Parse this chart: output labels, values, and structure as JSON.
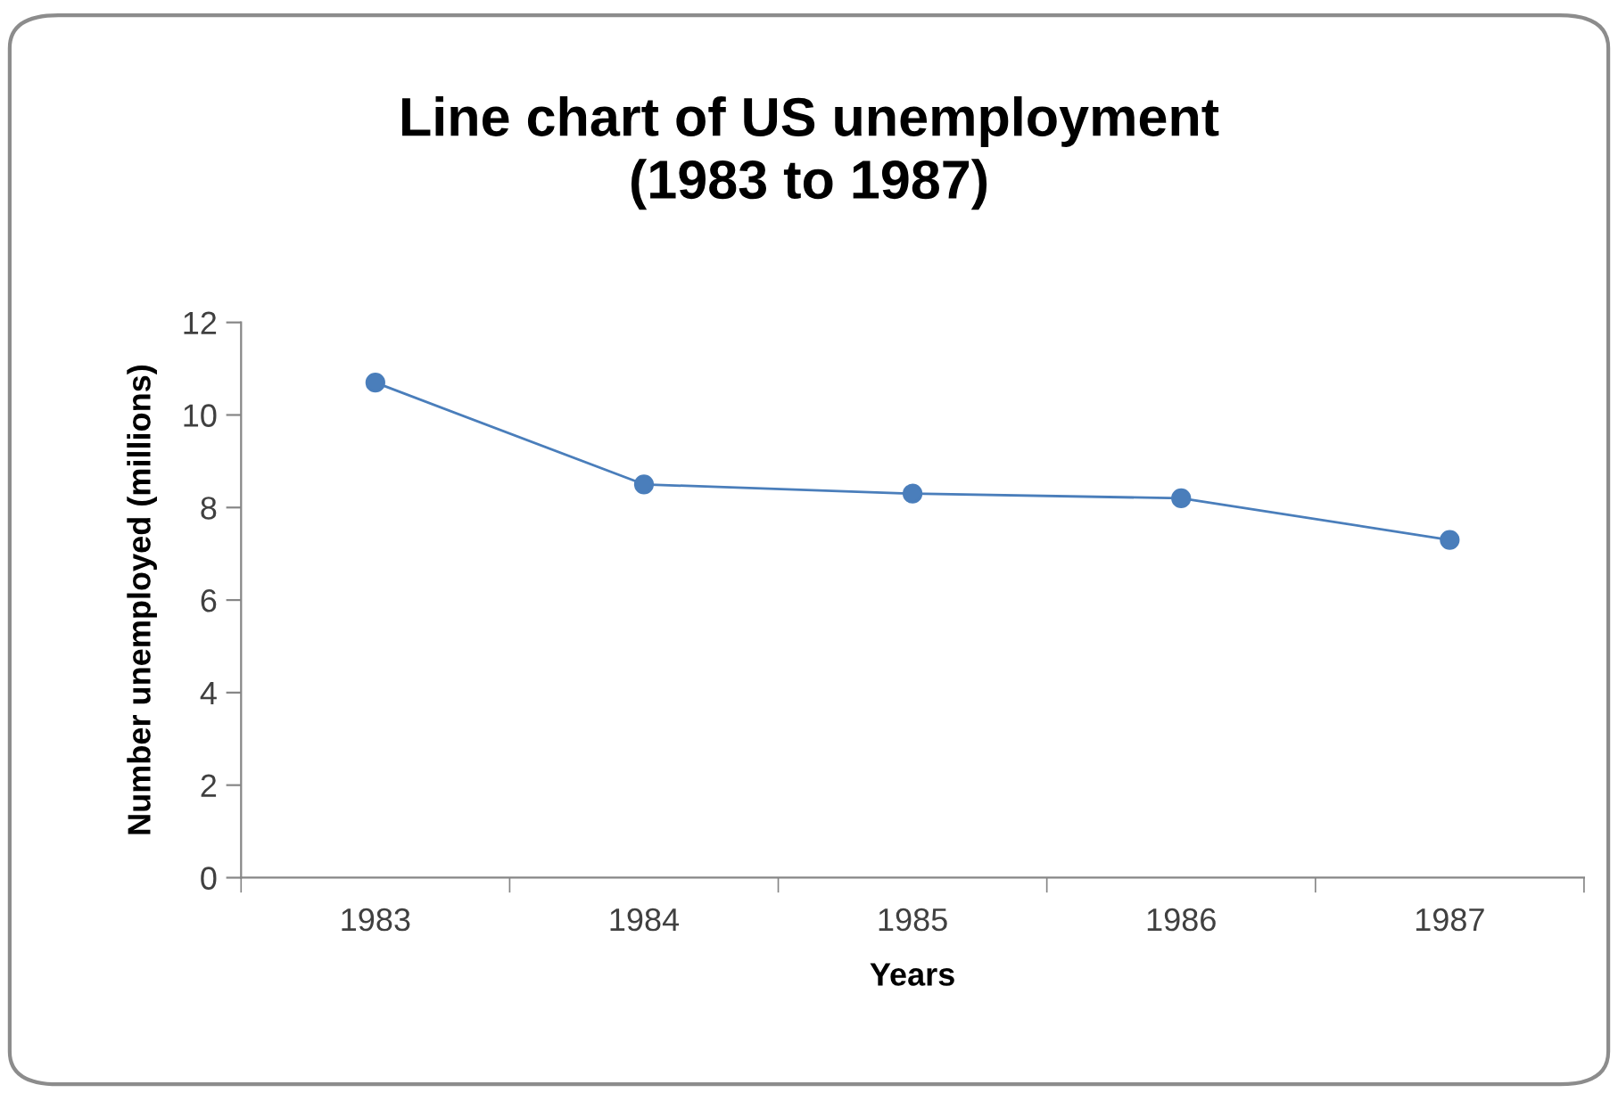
{
  "chart_data": {
    "type": "line",
    "title": "Line chart of US unemployment\n(1983 to 1987)",
    "xlabel": "Years",
    "ylabel": "Number unemployed (millions)",
    "categories": [
      "1983",
      "1984",
      "1985",
      "1986",
      "1987"
    ],
    "series": [
      {
        "color": "#4a7ebb",
        "values": [
          10.7,
          8.5,
          8.3,
          8.2,
          7.3
        ]
      }
    ],
    "ylim": [
      0,
      12
    ],
    "yticks": [
      0,
      2,
      4,
      6,
      8,
      10,
      12
    ],
    "grid": false,
    "legend": false,
    "marker": "circle",
    "line_style": "solid"
  }
}
